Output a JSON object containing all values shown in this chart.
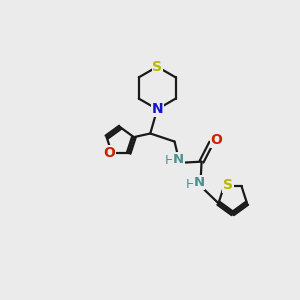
{
  "background_color": "#ebebeb",
  "bond_color": "#1a1a1a",
  "N_color": "#1414cc",
  "N_urea_color": "#4a9090",
  "O_color": "#cc2200",
  "S_color": "#b8b800",
  "line_width": 1.6,
  "figsize": [
    3.0,
    3.0
  ],
  "dpi": 100,
  "xlim": [
    0,
    10
  ],
  "ylim": [
    0,
    10
  ]
}
